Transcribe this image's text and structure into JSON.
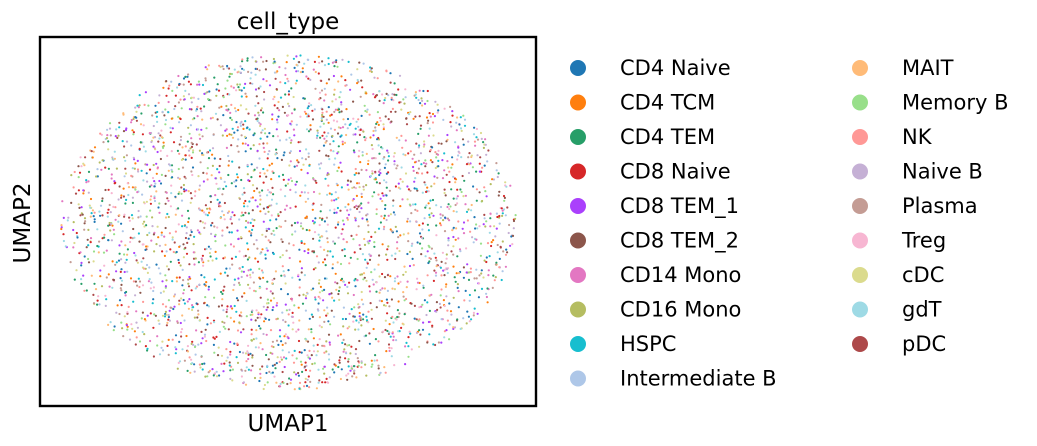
{
  "chart_data": {
    "type": "scatter",
    "title": "cell_type",
    "xlabel": "UMAP1",
    "ylabel": "UMAP2",
    "ticks": "none",
    "grid": false,
    "legend_placement": "right, outside plot, two columns",
    "categories": [
      {
        "name": "CD4 Naive",
        "color": "#1f77b4"
      },
      {
        "name": "CD4 TCM",
        "color": "#ff7f0e"
      },
      {
        "name": "CD4 TEM",
        "color": "#279e68"
      },
      {
        "name": "CD8 Naive",
        "color": "#d62728"
      },
      {
        "name": "CD8 TEM_1",
        "color": "#aa40fc"
      },
      {
        "name": "CD8 TEM_2",
        "color": "#8c564b"
      },
      {
        "name": "CD14 Mono",
        "color": "#e377c2"
      },
      {
        "name": "CD16 Mono",
        "color": "#b5bd61"
      },
      {
        "name": "HSPC",
        "color": "#17becf"
      },
      {
        "name": "Intermediate B",
        "color": "#aec7e8"
      },
      {
        "name": "MAIT",
        "color": "#ffbb78"
      },
      {
        "name": "Memory B",
        "color": "#98df8a"
      },
      {
        "name": "NK",
        "color": "#ff9896"
      },
      {
        "name": "Naive B",
        "color": "#c5b0d5"
      },
      {
        "name": "Plasma",
        "color": "#c49c94"
      },
      {
        "name": "Treg",
        "color": "#f7b6d2"
      },
      {
        "name": "cDC",
        "color": "#dbdb8d"
      },
      {
        "name": "gdT",
        "color": "#9edae5"
      },
      {
        "name": "pDC",
        "color": "#ad494a"
      }
    ],
    "points_note": "Many thousands of small points interleaved in an elliptical cloud; all categories evenly mixed."
  }
}
